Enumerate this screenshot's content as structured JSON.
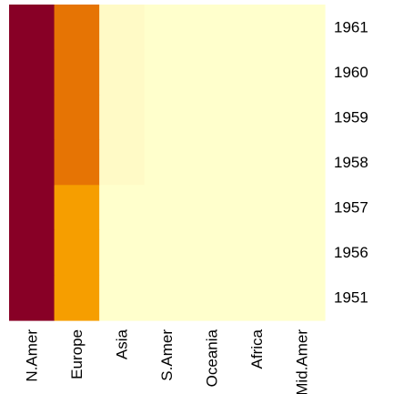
{
  "chart_data": {
    "type": "heatmap",
    "x_categories": [
      "N.Amer",
      "Europe",
      "Asia",
      "S.Amer",
      "Oceania",
      "Africa",
      "Mid.Amer"
    ],
    "y_categories": [
      "1961",
      "1960",
      "1959",
      "1958",
      "1957",
      "1956",
      "1951"
    ],
    "values": [
      [
        9,
        7,
        1,
        0,
        0,
        0,
        0
      ],
      [
        9,
        7,
        1,
        0,
        0,
        0,
        0
      ],
      [
        9,
        7,
        1,
        0,
        0,
        0,
        0
      ],
      [
        9,
        7,
        1,
        0,
        0,
        0,
        0
      ],
      [
        9,
        5,
        0,
        0,
        0,
        0,
        0
      ],
      [
        9,
        5,
        0,
        0,
        0,
        0,
        0
      ],
      [
        9,
        5,
        0,
        0,
        0,
        0,
        0
      ]
    ],
    "color_scale": [
      "#FFFFCC",
      "#FFF3BF",
      "#F7A600",
      "#F28200",
      "#880026"
    ],
    "title": "",
    "xlabel": "",
    "ylabel": "",
    "grid": false,
    "legend": false
  }
}
